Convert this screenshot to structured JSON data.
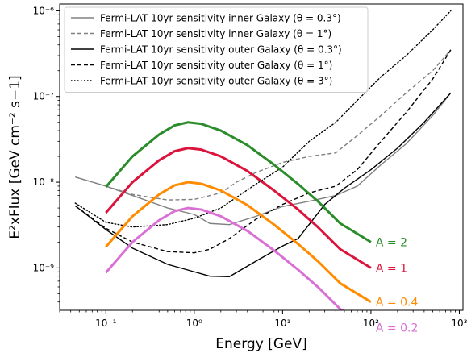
{
  "chart_data": {
    "type": "line",
    "xlabel": "Energy [GeV]",
    "ylabel": "E²xFlux [GeV cm⁻² s−1]",
    "xscale": "log",
    "yscale": "log",
    "xlim": [
      0.03,
      1100
    ],
    "ylim": [
      3.2e-10,
      1.2e-06
    ],
    "grid": false,
    "legend_position": "top-left",
    "x_ticks": [
      {
        "value": 0.1,
        "label": "10⁻¹"
      },
      {
        "value": 1,
        "label": "10⁰"
      },
      {
        "value": 10,
        "label": "10¹"
      },
      {
        "value": 100,
        "label": "10²"
      },
      {
        "value": 1000,
        "label": "10³"
      }
    ],
    "y_ticks": [
      {
        "value": 1e-09,
        "label": "10⁻⁹"
      },
      {
        "value": 1e-08,
        "label": "10⁻⁸"
      },
      {
        "value": 1e-07,
        "label": "10⁻⁷"
      },
      {
        "value": 1e-06,
        "label": "10⁻⁶"
      }
    ],
    "series": [
      {
        "name": "Fermi-LAT 10yr sensitivity inner Galaxy (θ = 0.3°)",
        "color": "#808080",
        "style": "solid",
        "width": 1.4,
        "in_legend": true,
        "x": [
          0.045,
          0.1,
          0.2,
          0.5,
          1,
          1.5,
          2.5,
          5,
          10,
          20,
          40,
          70,
          130,
          250,
          500,
          800
        ],
        "y": [
          1.15e-08,
          9e-09,
          7e-09,
          5e-09,
          4.2e-09,
          3.3e-09,
          3.2e-09,
          4e-09,
          5.2e-09,
          6e-09,
          7e-09,
          9e-09,
          1.6e-08,
          2.8e-08,
          6e-08,
          1.1e-07
        ]
      },
      {
        "name": "Fermi-LAT 10yr sensitivity inner Galaxy (θ = 1°)",
        "color": "#808080",
        "style": "dashed",
        "width": 1.4,
        "in_legend": true,
        "x": [
          0.045,
          0.1,
          0.2,
          0.5,
          1,
          2,
          3,
          5,
          10,
          20,
          40,
          70,
          130,
          250,
          500,
          800
        ],
        "y": [
          1.15e-08,
          9e-09,
          7.2e-09,
          6.2e-09,
          6.3e-09,
          7.5e-09,
          1e-08,
          1.3e-08,
          1.7e-08,
          2e-08,
          2.2e-08,
          3.5e-08,
          6e-08,
          1.1e-07,
          2e-07,
          3.5e-07
        ]
      },
      {
        "name": "Fermi-LAT 10yr sensitivity outer Galaxy (θ = 0.3°)",
        "color": "#000000",
        "style": "solid",
        "width": 1.4,
        "in_legend": true,
        "x": [
          0.045,
          0.1,
          0.2,
          0.5,
          1,
          1.5,
          2.5,
          5,
          10,
          15,
          30,
          50,
          100,
          200,
          400,
          800
        ],
        "y": [
          5.3e-09,
          2.8e-09,
          1.7e-09,
          1.1e-09,
          9e-10,
          8e-10,
          7.9e-10,
          1.2e-09,
          1.8e-09,
          2.2e-09,
          5.5e-09,
          8.5e-09,
          1.4e-08,
          2.5e-08,
          5e-08,
          1.1e-07
        ]
      },
      {
        "name": "Fermi-LAT 10yr sensitivity outer Galaxy (θ = 1°)",
        "color": "#000000",
        "style": "dashed",
        "width": 1.4,
        "in_legend": true,
        "x": [
          0.045,
          0.1,
          0.2,
          0.5,
          1,
          1.5,
          2.5,
          5,
          10,
          20,
          40,
          70,
          130,
          250,
          500,
          800
        ],
        "y": [
          5.3e-09,
          2.9e-09,
          2e-09,
          1.55e-09,
          1.5e-09,
          1.65e-09,
          2.2e-09,
          3.7e-09,
          5.5e-09,
          7.5e-09,
          9e-09,
          1.4e-08,
          3e-08,
          6.5e-08,
          1.6e-07,
          3.5e-07
        ]
      },
      {
        "name": "Fermi-LAT 10yr sensitivity outer Galaxy (θ = 3°)",
        "color": "#000000",
        "style": "dotted",
        "width": 1.4,
        "in_legend": true,
        "x": [
          0.045,
          0.1,
          0.2,
          0.5,
          1,
          2,
          5,
          10,
          20,
          40,
          70,
          130,
          250,
          500,
          800
        ],
        "y": [
          5.7e-09,
          3.4e-09,
          3e-09,
          3.2e-09,
          3.8e-09,
          5e-09,
          9.5e-09,
          1.5e-08,
          3e-08,
          5e-08,
          9e-08,
          1.7e-07,
          3e-07,
          6e-07,
          1e-06
        ]
      },
      {
        "name": "A = 2",
        "label": "A = 2",
        "color": "#2a8c2a",
        "style": "solid",
        "width": 3,
        "in_legend": false,
        "x": [
          0.1,
          0.2,
          0.4,
          0.6,
          0.85,
          1.2,
          2,
          4,
          8,
          15,
          25,
          45,
          100
        ],
        "y": [
          8.8e-09,
          2e-08,
          3.6e-08,
          4.6e-08,
          5e-08,
          4.8e-08,
          4e-08,
          2.7e-08,
          1.6e-08,
          9.5e-09,
          6e-09,
          3.3e-09,
          2e-09
        ]
      },
      {
        "name": "A = 1",
        "label": "A = 1",
        "color": "#dc143c",
        "style": "solid",
        "width": 3,
        "in_legend": false,
        "x": [
          0.1,
          0.2,
          0.4,
          0.6,
          0.85,
          1.2,
          2,
          4,
          8,
          15,
          25,
          45,
          100
        ],
        "y": [
          4.4e-09,
          1e-08,
          1.8e-08,
          2.3e-08,
          2.5e-08,
          2.4e-08,
          2e-08,
          1.35e-08,
          8e-09,
          4.8e-09,
          3e-09,
          1.65e-09,
          1e-09
        ]
      },
      {
        "name": "A = 0.4",
        "label": "A = 0.4",
        "color": "#ff8c00",
        "style": "solid",
        "width": 3,
        "in_legend": false,
        "x": [
          0.1,
          0.2,
          0.4,
          0.6,
          0.85,
          1.2,
          2,
          4,
          8,
          15,
          25,
          45,
          100
        ],
        "y": [
          1.76e-09,
          4e-09,
          7.2e-09,
          9.2e-09,
          1e-08,
          9.6e-09,
          8e-09,
          5.4e-09,
          3.2e-09,
          1.9e-09,
          1.2e-09,
          6.6e-10,
          4e-10
        ]
      },
      {
        "name": "A = 0.2",
        "label": "A = 0.2",
        "color": "#da70d6",
        "style": "solid",
        "width": 3,
        "in_legend": false,
        "x": [
          0.1,
          0.2,
          0.4,
          0.6,
          0.85,
          1.2,
          2,
          4,
          8,
          15,
          25,
          45,
          100
        ],
        "y": [
          8.8e-10,
          2e-09,
          3.6e-09,
          4.6e-09,
          5e-09,
          4.8e-09,
          4e-09,
          2.7e-09,
          1.6e-09,
          9.5e-10,
          6e-10,
          3.3e-10,
          2e-10
        ]
      }
    ]
  }
}
